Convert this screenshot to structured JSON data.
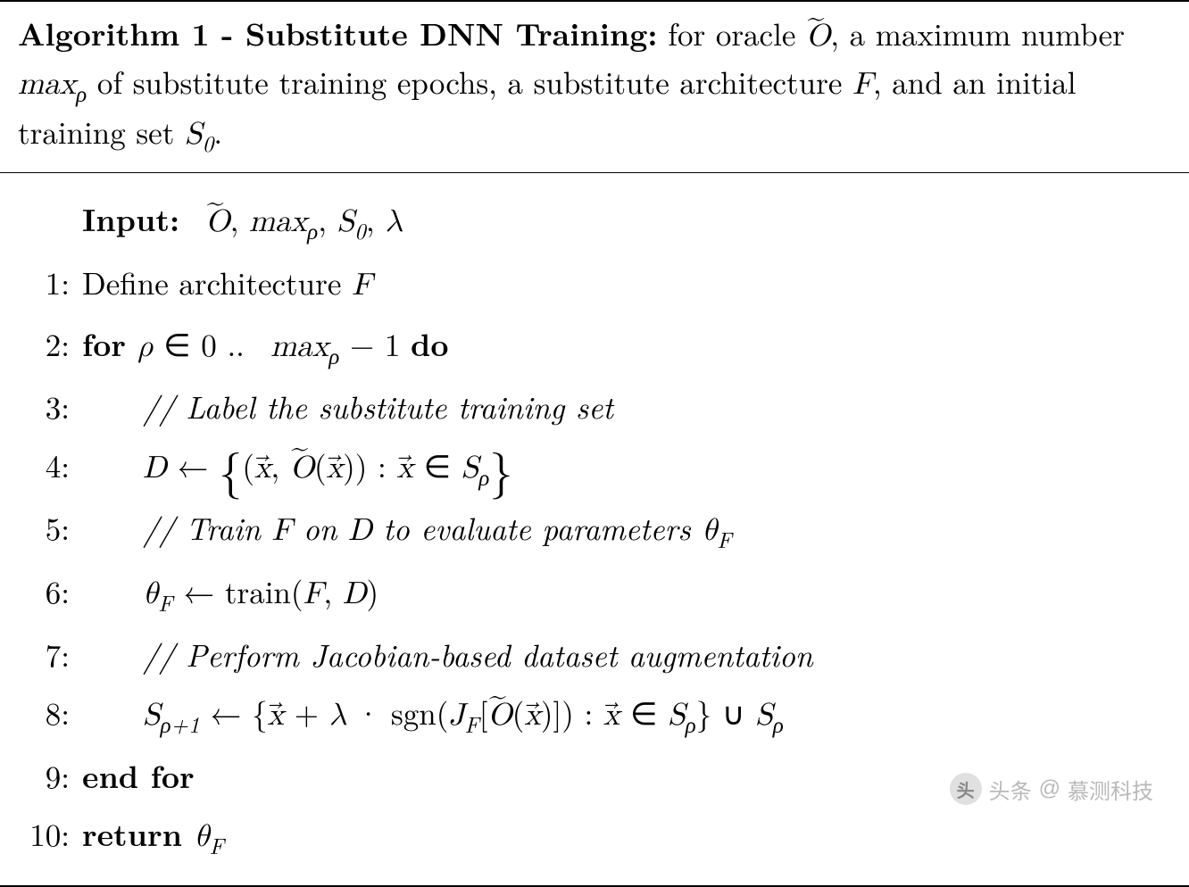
{
  "colors": {
    "text": "#000000",
    "background": "#ffffff",
    "rule": "#000000",
    "watermark": "#b9b9b9",
    "watermark_icon_bg": "#e0e0e0",
    "watermark_icon_fg": "#888888"
  },
  "typography": {
    "family": "Latin Modern Roman / Computer Modern",
    "header_fontsize": 35,
    "body_fontsize": 35,
    "line_height": 1.7
  },
  "header": {
    "title_bold": "Algorithm 1 - Substitute DNN Training:",
    "desc_part1": " for oracle ",
    "oracle_sym": "Õ",
    "desc_part2": ", a maximum number ",
    "maxp_sym": "max",
    "maxp_sub": "ρ",
    "desc_part3": " of substitute training epochs, a substitute architecture ",
    "F_sym": "F",
    "desc_part4": ", and an initial training set ",
    "S0_sym": "S",
    "S0_sub": "0",
    "desc_part5": "."
  },
  "input": {
    "label": "Input:",
    "oracle": "Õ",
    "sep": ", ",
    "maxp": "max",
    "maxp_sub": "ρ",
    "S0": "S",
    "S0_sub": "0",
    "lambda": "λ"
  },
  "lines": {
    "l1": {
      "no": "1:",
      "text": "Define architecture ",
      "F": "F"
    },
    "l2": {
      "no": "2:",
      "for": "for ",
      "rho": "ρ",
      "in": " ∈ 0 .. ",
      "maxp": "max",
      "maxp_sub": "ρ",
      "minus1": " − 1 ",
      "do": "do"
    },
    "l3": {
      "no": "3:",
      "comment": "// Label the substitute training set"
    },
    "l4": {
      "no": "4:",
      "D": "D",
      "arrow": " ← ",
      "open": "{",
      "pair_l": "(",
      "x1": "x⃗",
      "comma": ", ",
      "O": "Õ",
      "lp": "(",
      "x2": "x⃗",
      "rp": ")",
      "pair_r": ")",
      "colon": " : ",
      "x3": "x⃗",
      "in": " ∈ ",
      "S": "S",
      "S_sub": "ρ",
      "close": "}"
    },
    "l5": {
      "no": "5:",
      "comment_a": "// Train ",
      "F": "F",
      "comment_b": " on ",
      "D": "D",
      "comment_c": " to evaluate parameters ",
      "theta": "θ",
      "theta_sub": "F"
    },
    "l6": {
      "no": "6:",
      "theta": "θ",
      "theta_sub": "F",
      "arrow": " ← ",
      "train": "train",
      "lp": "(",
      "F": "F",
      "comma": ", ",
      "D": "D",
      "rp": ")"
    },
    "l7": {
      "no": "7:",
      "comment": "// Perform Jacobian-based dataset augmentation"
    },
    "l8": {
      "no": "8:",
      "S": "S",
      "S_sub": "ρ+1",
      "arrow": " ← ",
      "open": "{",
      "x1": "x⃗",
      "plus": " + ",
      "lambda": "λ",
      "dot": " · ",
      "sgn": "sgn",
      "lp": "(",
      "J": "J",
      "J_sub": "F",
      "lb": "[",
      "O": "Õ",
      "lp2": "(",
      "x2": "x⃗",
      "rp2": ")",
      "rb": "]",
      "rp": ")",
      "colon": " : ",
      "x3": "x⃗",
      "in": " ∈ ",
      "S2": "S",
      "S2_sub": "ρ",
      "close": "}",
      "cup": " ∪ ",
      "S3": "S",
      "S3_sub": "ρ"
    },
    "l9": {
      "no": "9:",
      "endfor": "end for"
    },
    "l10": {
      "no": "10:",
      "return": "return ",
      "theta": "θ",
      "theta_sub": "F"
    }
  },
  "watermark": {
    "prefix": "头条",
    "at": "@",
    "name": "慕测科技"
  }
}
